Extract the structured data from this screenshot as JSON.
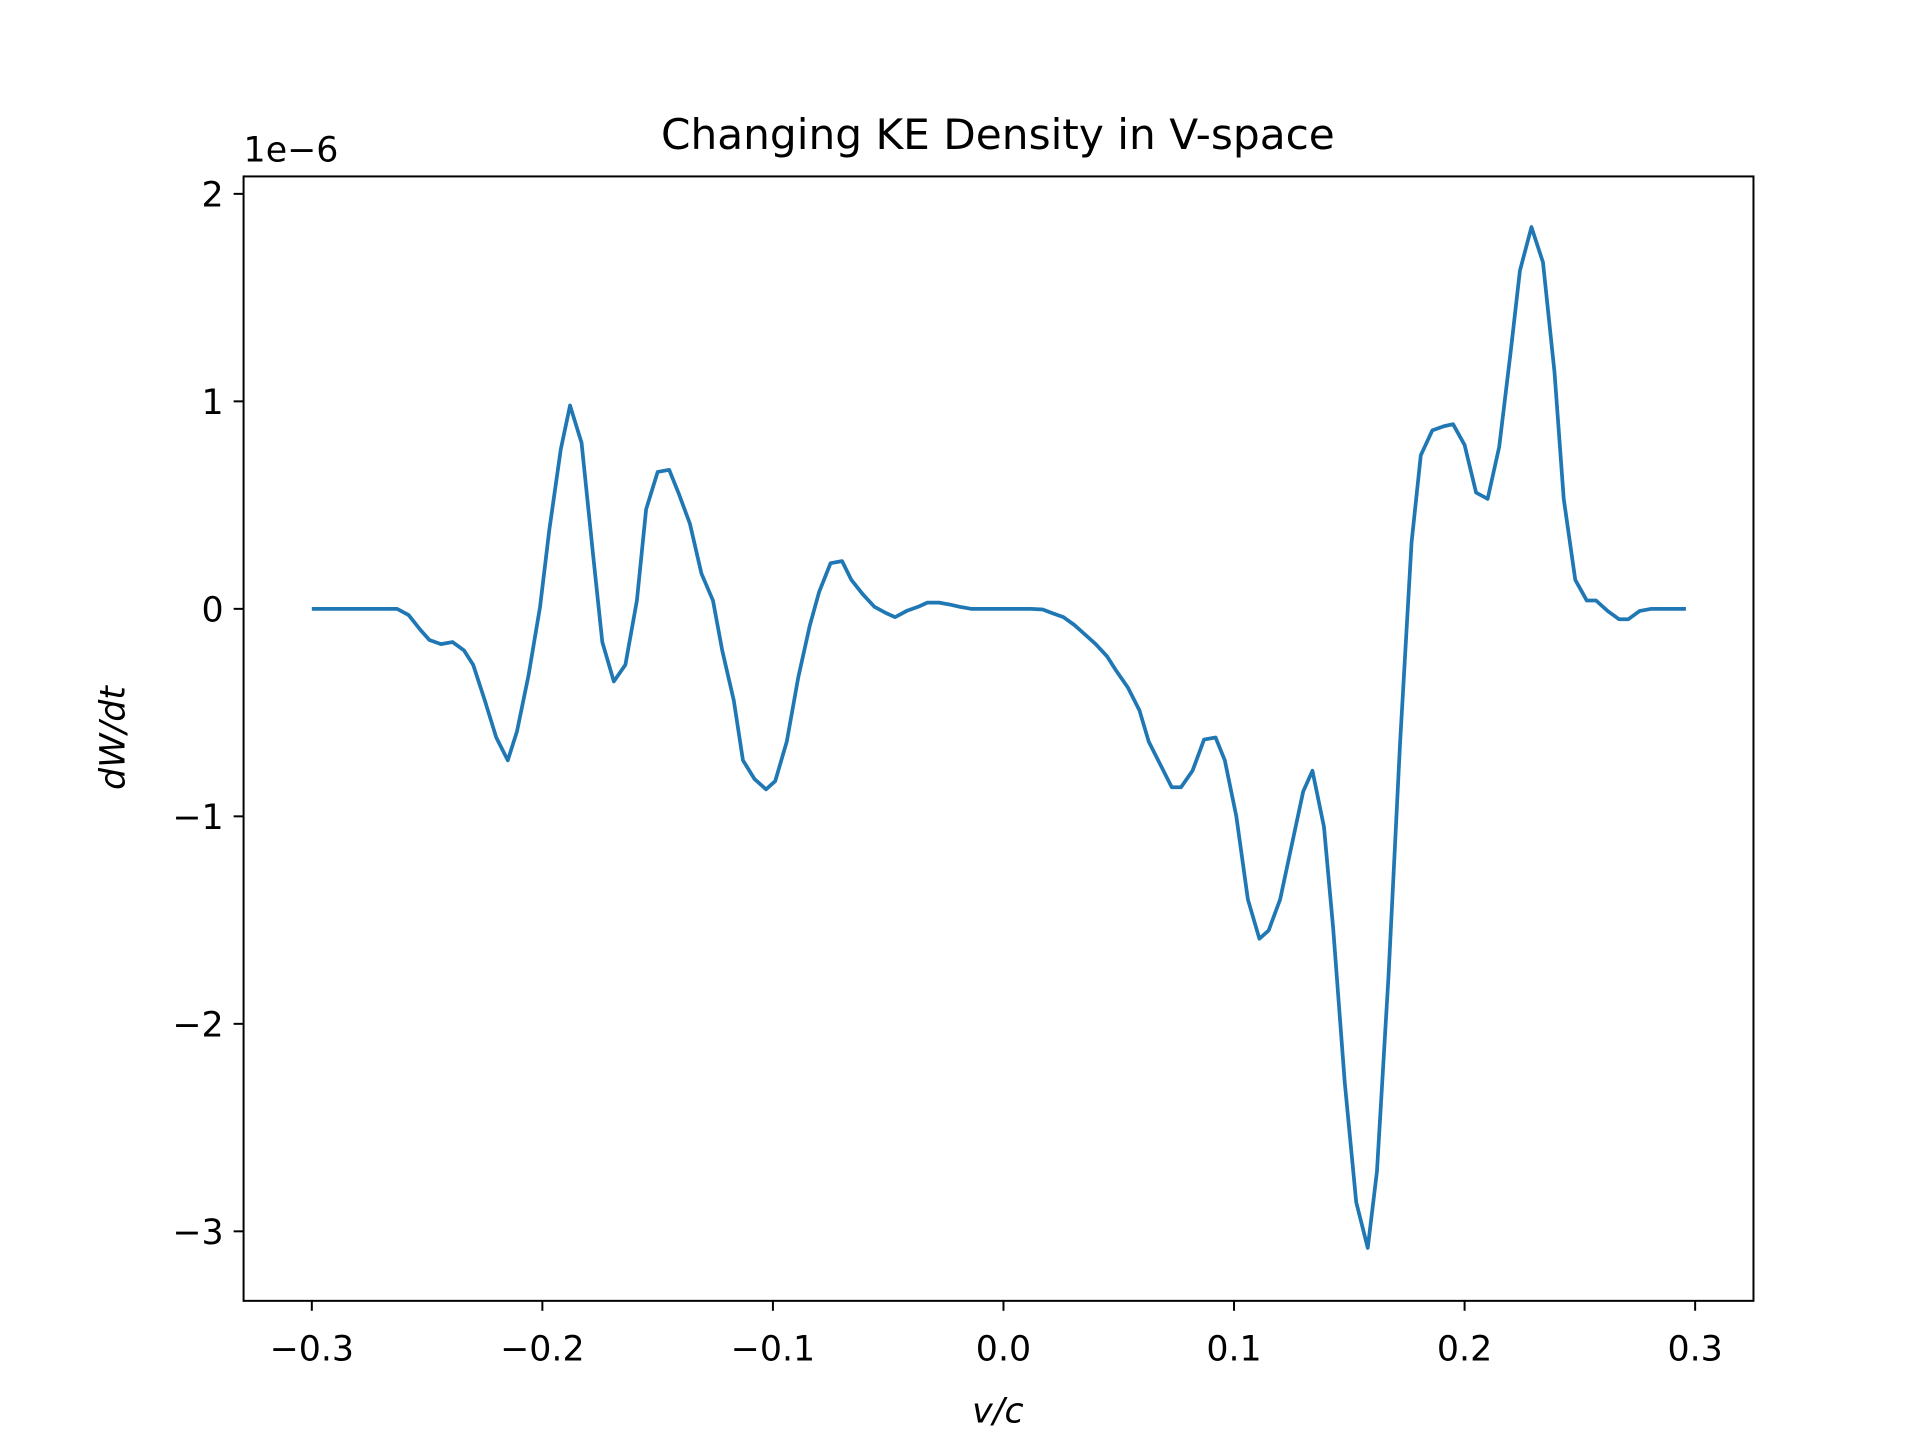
{
  "chart_data": {
    "type": "line",
    "title": "Changing KE Density in V-space",
    "x_label": "v/c",
    "y_label": "dW/dt",
    "y_offset_text": "1e−6",
    "xlim": [
      -0.3296,
      0.3253
    ],
    "ylim": [
      -3.335,
      2.084
    ],
    "xticks": [
      {
        "value": -0.3,
        "label": "−0.3"
      },
      {
        "value": -0.2,
        "label": "−0.2"
      },
      {
        "value": -0.1,
        "label": "−0.1"
      },
      {
        "value": 0,
        "label": "0.0"
      },
      0.1,
      0.2,
      0.3
    ],
    "yticks": [
      {
        "value": -3,
        "label": "−3"
      },
      {
        "value": -2,
        "label": "−2"
      },
      {
        "value": -1,
        "label": "−1"
      },
      0,
      1,
      2
    ],
    "grid": false,
    "x": [
      -0.3,
      -0.29,
      -0.263,
      -0.258,
      -0.253,
      -0.249,
      -0.244,
      -0.239,
      -0.234,
      -0.23,
      -0.225,
      -0.22,
      -0.215,
      -0.211,
      -0.206,
      -0.201,
      -0.197,
      -0.192,
      -0.188,
      -0.183,
      -0.178,
      -0.174,
      -0.169,
      -0.164,
      -0.159,
      -0.155,
      -0.15,
      -0.145,
      -0.141,
      -0.136,
      -0.131,
      -0.126,
      -0.122,
      -0.117,
      -0.113,
      -0.108,
      -0.103,
      -0.099,
      -0.094,
      -0.089,
      -0.084,
      -0.08,
      -0.075,
      -0.07,
      -0.066,
      -0.061,
      -0.056,
      -0.051,
      -0.047,
      -0.042,
      -0.037,
      -0.033,
      -0.028,
      -0.023,
      -0.019,
      -0.014,
      0.012,
      0.017,
      0.021,
      0.026,
      0.031,
      0.035,
      0.04,
      0.045,
      0.049,
      0.054,
      0.059,
      0.063,
      0.068,
      0.073,
      0.077,
      0.082,
      0.087,
      0.092,
      0.096,
      0.101,
      0.106,
      0.111,
      0.115,
      0.12,
      0.125,
      0.13,
      0.134,
      0.139,
      0.143,
      0.148,
      0.153,
      0.158,
      0.162,
      0.167,
      0.172,
      0.177,
      0.181,
      0.186,
      0.191,
      0.195,
      0.2,
      0.205,
      0.21,
      0.215,
      0.22,
      0.224,
      0.229,
      0.234,
      0.239,
      0.243,
      0.248,
      0.253,
      0.257,
      0.262,
      0.267,
      0.271,
      0.276,
      0.281,
      0.296
    ],
    "series": [
      {
        "color": "#1f77b4",
        "values": [
          0,
          0,
          0,
          -0.03,
          -0.1,
          -0.15,
          -0.17,
          -0.16,
          -0.2,
          -0.27,
          -0.44,
          -0.62,
          -0.73,
          -0.59,
          -0.32,
          0.01,
          0.38,
          0.77,
          0.98,
          0.8,
          0.26,
          -0.16,
          -0.35,
          -0.27,
          0.04,
          0.48,
          0.66,
          0.67,
          0.56,
          0.41,
          0.17,
          0.04,
          -0.2,
          -0.44,
          -0.73,
          -0.82,
          -0.87,
          -0.83,
          -0.64,
          -0.33,
          -0.08,
          0.08,
          0.22,
          0.23,
          0.14,
          0.07,
          0.01,
          -0.02,
          -0.04,
          -0.01,
          0.01,
          0.03,
          0.03,
          0.02,
          0.01,
          0,
          0,
          -0.003,
          -0.02,
          -0.04,
          -0.08,
          -0.12,
          -0.17,
          -0.23,
          -0.3,
          -0.38,
          -0.49,
          -0.64,
          -0.75,
          -0.86,
          -0.86,
          -0.78,
          -0.63,
          -0.62,
          -0.73,
          -1.0,
          -1.4,
          -1.59,
          -1.55,
          -1.4,
          -1.14,
          -0.88,
          -0.78,
          -1.05,
          -1.54,
          -2.28,
          -2.86,
          -3.08,
          -2.71,
          -1.77,
          -0.65,
          0.32,
          0.74,
          0.86,
          0.88,
          0.89,
          0.79,
          0.56,
          0.53,
          0.78,
          1.24,
          1.63,
          1.84,
          1.67,
          1.14,
          0.53,
          0.14,
          0.04,
          0.04,
          -0.01,
          -0.05,
          -0.05,
          -0.01,
          0,
          0
        ]
      }
    ]
  }
}
